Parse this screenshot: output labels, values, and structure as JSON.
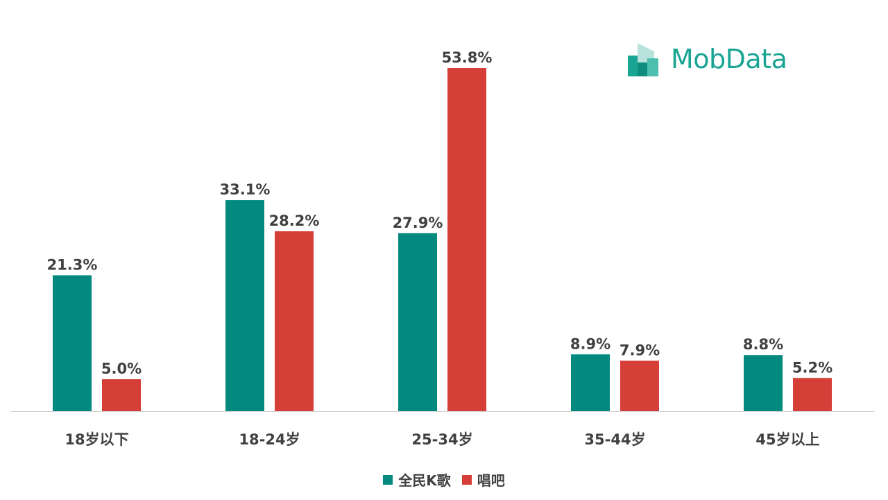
{
  "brand": {
    "logo_text": "MobData"
  },
  "colors": {
    "series1": "#028a80",
    "series2": "#d63f38",
    "label": "#404040",
    "axis": "#d0d0d0",
    "logo": "#1aa493"
  },
  "chart_data": {
    "type": "bar",
    "categories": [
      "18岁以下",
      "18-24岁",
      "25-34岁",
      "35-44岁",
      "45岁以上"
    ],
    "series": [
      {
        "name": "全民K歌",
        "values": [
          21.3,
          33.1,
          27.9,
          8.9,
          8.8
        ],
        "labels": [
          "21.3%",
          "33.1%",
          "27.9%",
          "8.9%",
          "8.8%"
        ]
      },
      {
        "name": "唱吧",
        "values": [
          5.0,
          28.2,
          53.8,
          7.9,
          5.2
        ],
        "labels": [
          "5.0%",
          "28.2%",
          "53.8%",
          "7.9%",
          "5.2%"
        ]
      }
    ],
    "ylim": [
      0,
      60
    ],
    "grid": false,
    "legend_position": "bottom",
    "title": "",
    "xlabel": "",
    "ylabel": ""
  }
}
